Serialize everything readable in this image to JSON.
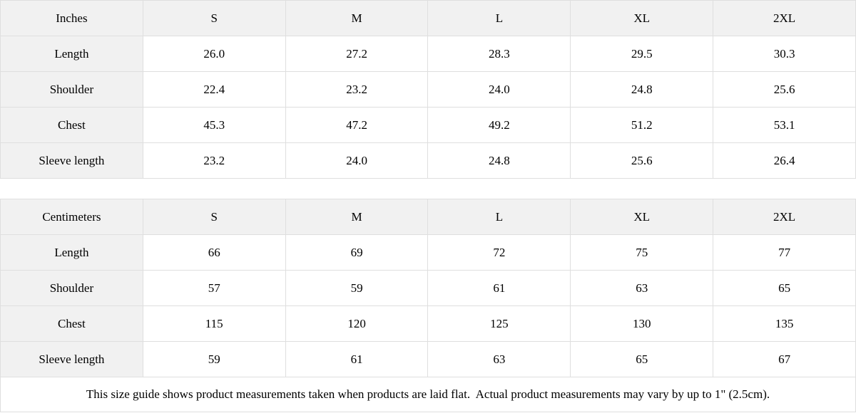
{
  "tables": [
    {
      "id": "inches",
      "unit_label": "Inches",
      "header": [
        "Inches",
        "S",
        "M",
        "L",
        "XL",
        "2XL"
      ],
      "rows": [
        {
          "label": "Length",
          "values": [
            "26.0",
            "27.2",
            "28.3",
            "29.5",
            "30.3"
          ]
        },
        {
          "label": "Shoulder",
          "values": [
            "22.4",
            "23.2",
            "24.0",
            "24.8",
            "25.6"
          ]
        },
        {
          "label": "Chest",
          "values": [
            "45.3",
            "47.2",
            "49.2",
            "51.2",
            "53.1"
          ]
        },
        {
          "label": "Sleeve length",
          "values": [
            "23.2",
            "24.0",
            "24.8",
            "25.6",
            "26.4"
          ]
        }
      ]
    },
    {
      "id": "centimeters",
      "unit_label": "Centimeters",
      "header": [
        "Centimeters",
        "S",
        "M",
        "L",
        "XL",
        "2XL"
      ],
      "rows": [
        {
          "label": "Length",
          "values": [
            "66",
            "69",
            "72",
            "75",
            "77"
          ]
        },
        {
          "label": "Shoulder",
          "values": [
            "57",
            "59",
            "61",
            "63",
            "65"
          ]
        },
        {
          "label": "Chest",
          "values": [
            "115",
            "120",
            "125",
            "130",
            "135"
          ]
        },
        {
          "label": "Sleeve length",
          "values": [
            "59",
            "61",
            "63",
            "65",
            "67"
          ]
        }
      ]
    }
  ],
  "note": "This size guide shows product measurements taken when products are laid flat.  Actual product measurements may vary by up to 1\" (2.5cm).",
  "colors": {
    "header_bg": "#f1f1f1",
    "border": "#dfdfdf",
    "text": "#000000",
    "page_bg": "#ffffff"
  }
}
